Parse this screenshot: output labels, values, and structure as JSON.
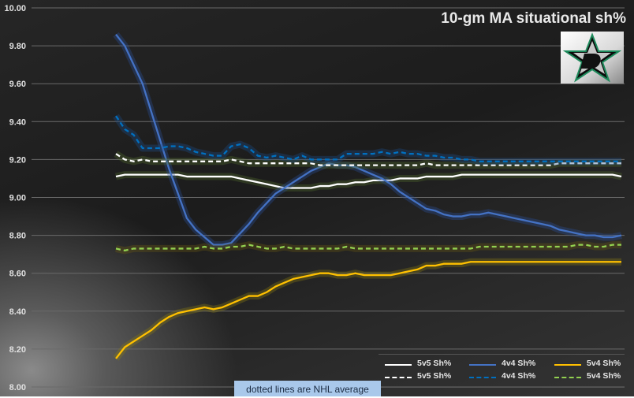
{
  "chart_data": {
    "type": "line",
    "title": "10-gm MA situational sh%",
    "xlabel": "",
    "ylabel": "",
    "ylim": [
      8.0,
      10.0
    ],
    "yticks": [
      "8.00",
      "8.20",
      "8.40",
      "8.60",
      "8.80",
      "9.00",
      "9.20",
      "9.40",
      "9.60",
      "9.80",
      "10.00"
    ],
    "grid": true,
    "legend_position": "bottom-right",
    "annotation": "dotted lines are NHL average",
    "x_count": 58,
    "series": [
      {
        "name": "5v5 Sh%",
        "style": "solid",
        "color": "#ffffff",
        "values": [
          9.11,
          9.12,
          9.12,
          9.12,
          9.12,
          9.12,
          9.12,
          9.12,
          9.11,
          9.11,
          9.11,
          9.11,
          9.11,
          9.11,
          9.1,
          9.09,
          9.08,
          9.07,
          9.06,
          9.05,
          9.05,
          9.05,
          9.05,
          9.06,
          9.06,
          9.07,
          9.07,
          9.08,
          9.08,
          9.09,
          9.09,
          9.09,
          9.1,
          9.1,
          9.1,
          9.11,
          9.11,
          9.11,
          9.11,
          9.12,
          9.12,
          9.12,
          9.12,
          9.12,
          9.12,
          9.12,
          9.12,
          9.12,
          9.12,
          9.12,
          9.12,
          9.12,
          9.12,
          9.12,
          9.12,
          9.12,
          9.12,
          9.11
        ]
      },
      {
        "name": "4v4 Sh%",
        "style": "solid",
        "color": "#4472c4",
        "values": [
          9.86,
          9.8,
          9.7,
          9.6,
          9.45,
          9.3,
          9.15,
          9.02,
          8.89,
          8.83,
          8.79,
          8.75,
          8.75,
          8.76,
          8.81,
          8.86,
          8.92,
          8.97,
          9.02,
          9.05,
          9.08,
          9.11,
          9.14,
          9.16,
          9.18,
          9.17,
          9.17,
          9.16,
          9.14,
          9.12,
          9.1,
          9.07,
          9.03,
          9.0,
          8.97,
          8.94,
          8.93,
          8.91,
          8.9,
          8.9,
          8.91,
          8.91,
          8.92,
          8.91,
          8.9,
          8.89,
          8.88,
          8.87,
          8.86,
          8.85,
          8.83,
          8.82,
          8.81,
          8.8,
          8.8,
          8.79,
          8.79,
          8.8
        ]
      },
      {
        "name": "5v4 Sh%",
        "style": "solid",
        "color": "#ffc000",
        "values": [
          8.15,
          8.21,
          8.24,
          8.27,
          8.3,
          8.34,
          8.37,
          8.39,
          8.4,
          8.41,
          8.42,
          8.41,
          8.42,
          8.44,
          8.46,
          8.48,
          8.48,
          8.5,
          8.53,
          8.55,
          8.57,
          8.58,
          8.59,
          8.6,
          8.6,
          8.59,
          8.59,
          8.6,
          8.59,
          8.59,
          8.59,
          8.59,
          8.6,
          8.61,
          8.62,
          8.64,
          8.64,
          8.65,
          8.65,
          8.65,
          8.66,
          8.66,
          8.66,
          8.66,
          8.66,
          8.66,
          8.66,
          8.66,
          8.66,
          8.66,
          8.66,
          8.66,
          8.66,
          8.66,
          8.66,
          8.66,
          8.66,
          8.66
        ]
      },
      {
        "name": "5v5 Sh%",
        "style": "dotted",
        "color": "#ffffff",
        "values": [
          9.23,
          9.2,
          9.19,
          9.2,
          9.19,
          9.19,
          9.19,
          9.19,
          9.19,
          9.19,
          9.19,
          9.19,
          9.19,
          9.2,
          9.19,
          9.18,
          9.18,
          9.18,
          9.18,
          9.18,
          9.18,
          9.18,
          9.18,
          9.17,
          9.17,
          9.17,
          9.17,
          9.17,
          9.17,
          9.17,
          9.17,
          9.17,
          9.17,
          9.17,
          9.17,
          9.18,
          9.17,
          9.17,
          9.17,
          9.17,
          9.17,
          9.17,
          9.17,
          9.17,
          9.17,
          9.17,
          9.17,
          9.17,
          9.17,
          9.17,
          9.18,
          9.18,
          9.18,
          9.18,
          9.18,
          9.18,
          9.18,
          9.18
        ]
      },
      {
        "name": "4v4 Sh%",
        "style": "dotted",
        "color": "#0070c0",
        "values": [
          9.43,
          9.36,
          9.33,
          9.26,
          9.26,
          9.26,
          9.27,
          9.27,
          9.26,
          9.24,
          9.23,
          9.22,
          9.22,
          9.27,
          9.28,
          9.26,
          9.22,
          9.21,
          9.22,
          9.21,
          9.2,
          9.22,
          9.2,
          9.2,
          9.2,
          9.2,
          9.23,
          9.23,
          9.23,
          9.23,
          9.24,
          9.23,
          9.24,
          9.23,
          9.23,
          9.22,
          9.22,
          9.21,
          9.21,
          9.2,
          9.2,
          9.19,
          9.19,
          9.19,
          9.19,
          9.19,
          9.19,
          9.19,
          9.19,
          9.19,
          9.19,
          9.19,
          9.19,
          9.19,
          9.19,
          9.19,
          9.19,
          9.19
        ]
      },
      {
        "name": "5v4 Sh%",
        "style": "dotted",
        "color": "#92d050",
        "values": [
          8.73,
          8.72,
          8.73,
          8.73,
          8.73,
          8.73,
          8.73,
          8.73,
          8.73,
          8.73,
          8.74,
          8.73,
          8.73,
          8.74,
          8.74,
          8.75,
          8.74,
          8.73,
          8.73,
          8.74,
          8.73,
          8.73,
          8.73,
          8.73,
          8.73,
          8.73,
          8.74,
          8.73,
          8.73,
          8.73,
          8.73,
          8.73,
          8.73,
          8.73,
          8.73,
          8.73,
          8.73,
          8.73,
          8.73,
          8.73,
          8.73,
          8.74,
          8.74,
          8.74,
          8.74,
          8.74,
          8.74,
          8.74,
          8.74,
          8.74,
          8.74,
          8.74,
          8.75,
          8.75,
          8.74,
          8.74,
          8.75,
          8.75
        ]
      }
    ]
  }
}
